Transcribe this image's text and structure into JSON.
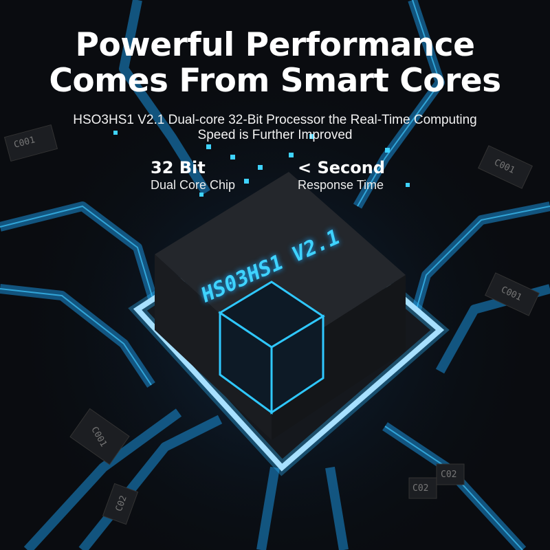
{
  "headline": {
    "line1": "Powerful Performance",
    "line2": "Comes From Smart Cores"
  },
  "subtitle": {
    "line1": "HSO3HS1 V2.1 Dual-core 32-Bit Processor the Real-Time Computing",
    "line2": "Speed is Further Improved"
  },
  "features": [
    {
      "value": "32 Bit",
      "label": "Dual Core Chip"
    },
    {
      "value": "< Second",
      "label": "Response Time"
    }
  ],
  "chip": {
    "label": "HS03HS1 V2.1"
  },
  "components": [
    "C001",
    "C001",
    "C001",
    "C001",
    "C02",
    "C02",
    "C02"
  ],
  "colors": {
    "background": "#0a0c10",
    "accent": "#3fd3ff",
    "glow": "#19a8ff"
  }
}
